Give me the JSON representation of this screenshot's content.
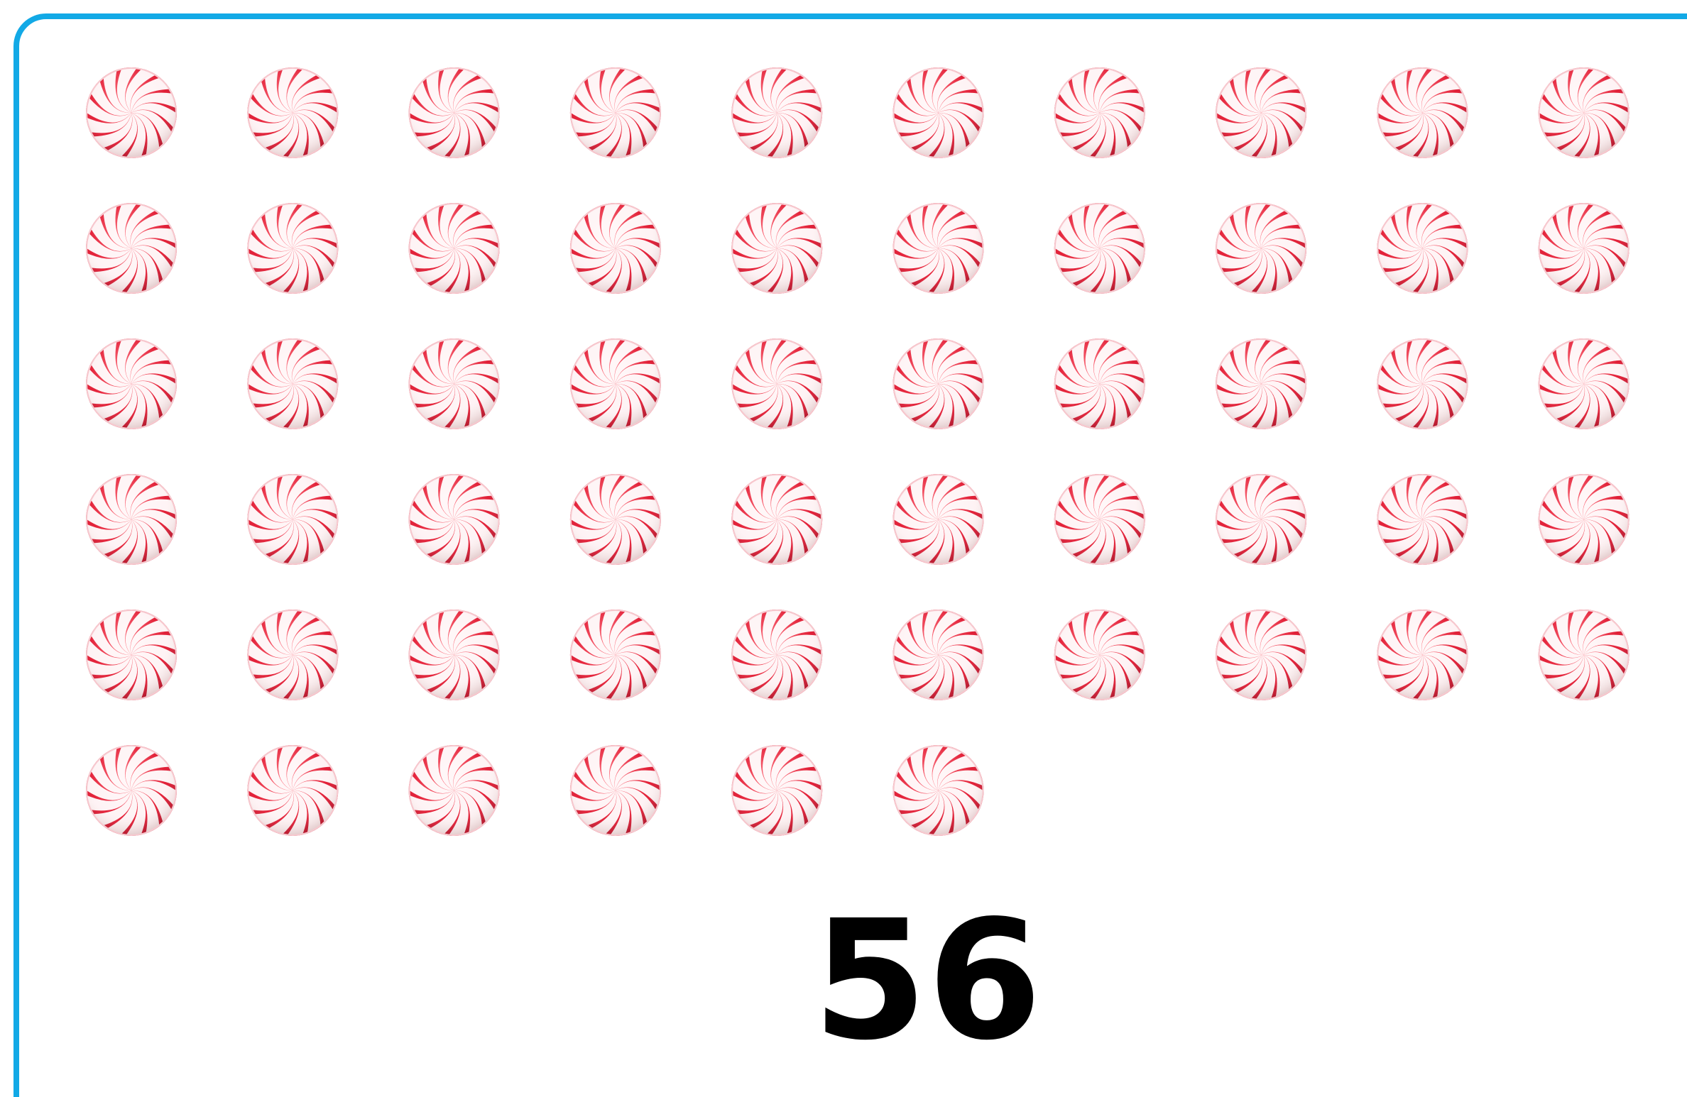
{
  "number": 56
}
